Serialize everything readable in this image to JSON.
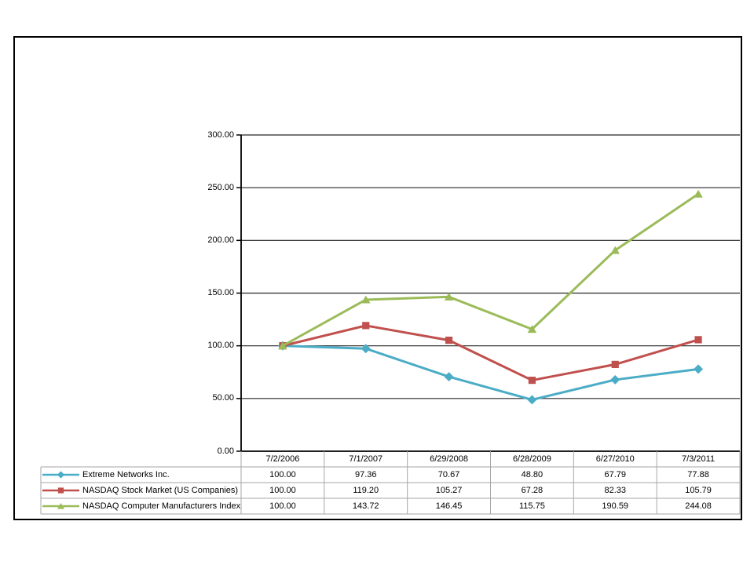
{
  "chart_data": {
    "type": "line",
    "title": "",
    "x_categories": [
      "7/2/2006",
      "7/1/2007",
      "6/29/2008",
      "6/28/2009",
      "6/27/2010",
      "7/3/2011"
    ],
    "series": [
      {
        "name": "Extreme Networks Inc.",
        "color": "#4BACC6",
        "marker": "diamond",
        "values": [
          100.0,
          97.36,
          70.67,
          48.8,
          67.79,
          77.88
        ],
        "display_values": [
          "100.00",
          "97.36",
          "70.67",
          "48.80",
          "67.79",
          "77.88"
        ]
      },
      {
        "name": "NASDAQ Stock Market (US Companies)",
        "color": "#C0504D",
        "marker": "square",
        "values": [
          100.0,
          119.2,
          105.27,
          67.28,
          82.33,
          105.79
        ],
        "display_values": [
          "100.00",
          "119.20",
          "105.27",
          "67.28",
          "82.33",
          "105.79"
        ]
      },
      {
        "name": "NASDAQ Computer Manufacturers Index",
        "color": "#9BBB59",
        "marker": "triangle",
        "values": [
          100.0,
          143.72,
          146.45,
          115.75,
          190.59,
          244.08
        ],
        "display_values": [
          "100.00",
          "143.72",
          "146.45",
          "115.75",
          "190.59",
          "244.08"
        ]
      }
    ],
    "y_axis": {
      "min": 0,
      "max": 300,
      "step": 50,
      "tick_labels": [
        "300.00",
        "250.00",
        "200.00",
        "150.00",
        "100.00",
        "50.00",
        "0.00"
      ]
    },
    "grid": true,
    "legend_position": "table-left"
  },
  "colors": {
    "background": "#ffffff",
    "frame_border": "#000000",
    "axis": "#000000",
    "gridline": "#262626",
    "table_border": "#a6a6a6",
    "text": "#000000"
  }
}
